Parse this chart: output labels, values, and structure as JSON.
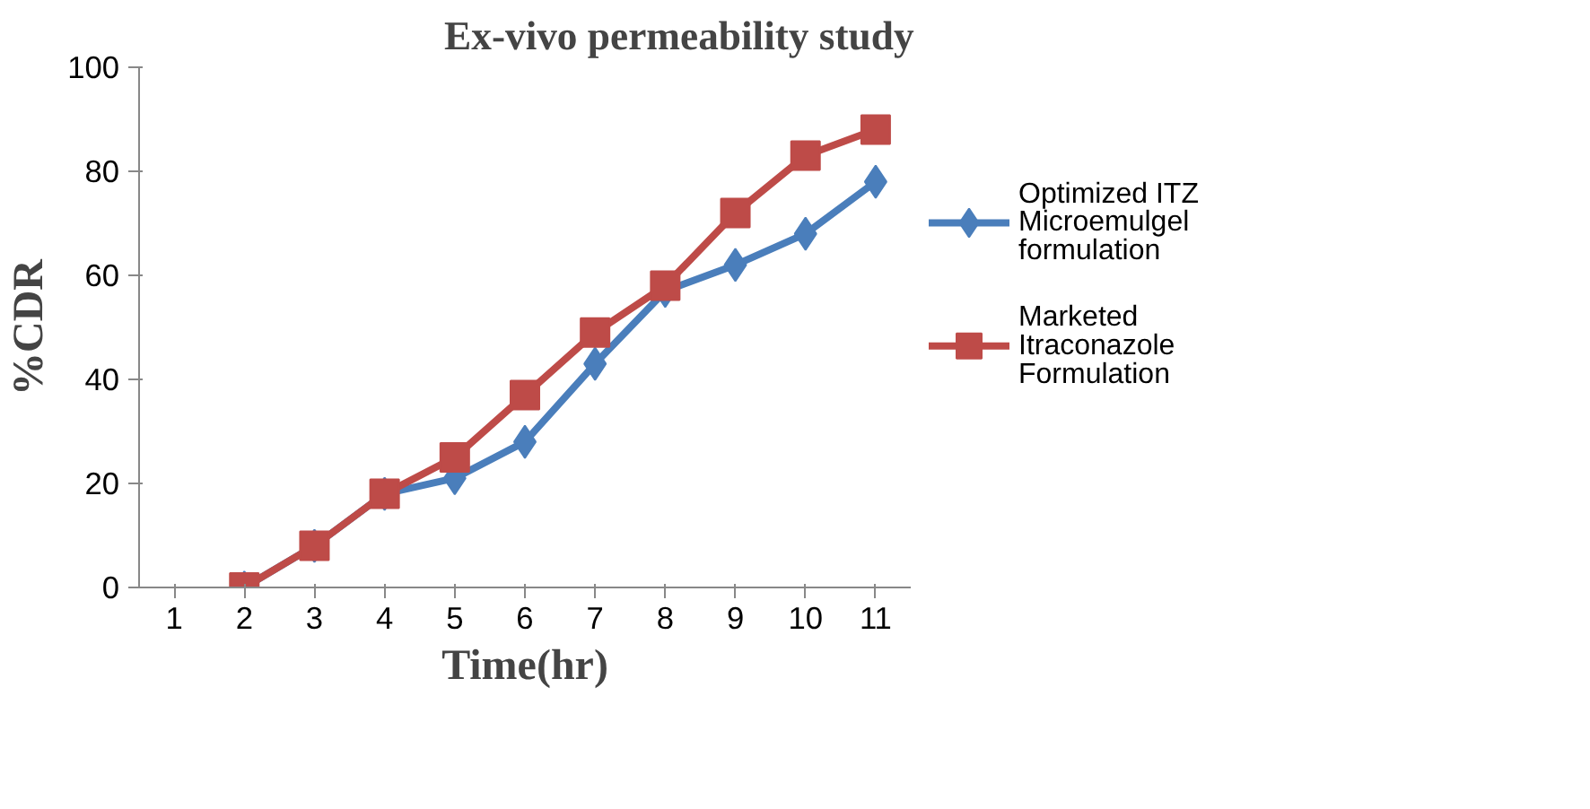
{
  "chart_data": {
    "type": "line",
    "title": "Ex-vivo permeability study",
    "xlabel": "Time(hr)",
    "ylabel": "%CDR",
    "categories": [
      "1",
      "2",
      "3",
      "4",
      "5",
      "6",
      "7",
      "8",
      "9",
      "10",
      "11"
    ],
    "series": [
      {
        "name": "Optimized ITZ Microemulgel formulation",
        "color": "#4a7ebb",
        "marker": "diamond",
        "values": [
          null,
          0,
          8,
          18,
          21,
          28,
          43,
          57,
          62,
          68,
          78
        ]
      },
      {
        "name": "Marketed Itraconazole Formulation",
        "color": "#be4b48",
        "marker": "square",
        "values": [
          null,
          0,
          8,
          18,
          25,
          37,
          49,
          58,
          72,
          83,
          88
        ]
      }
    ],
    "ylim": [
      0,
      100
    ],
    "yticks": [
      0,
      20,
      40,
      60,
      80,
      100
    ],
    "grid": false,
    "legend": "right"
  }
}
